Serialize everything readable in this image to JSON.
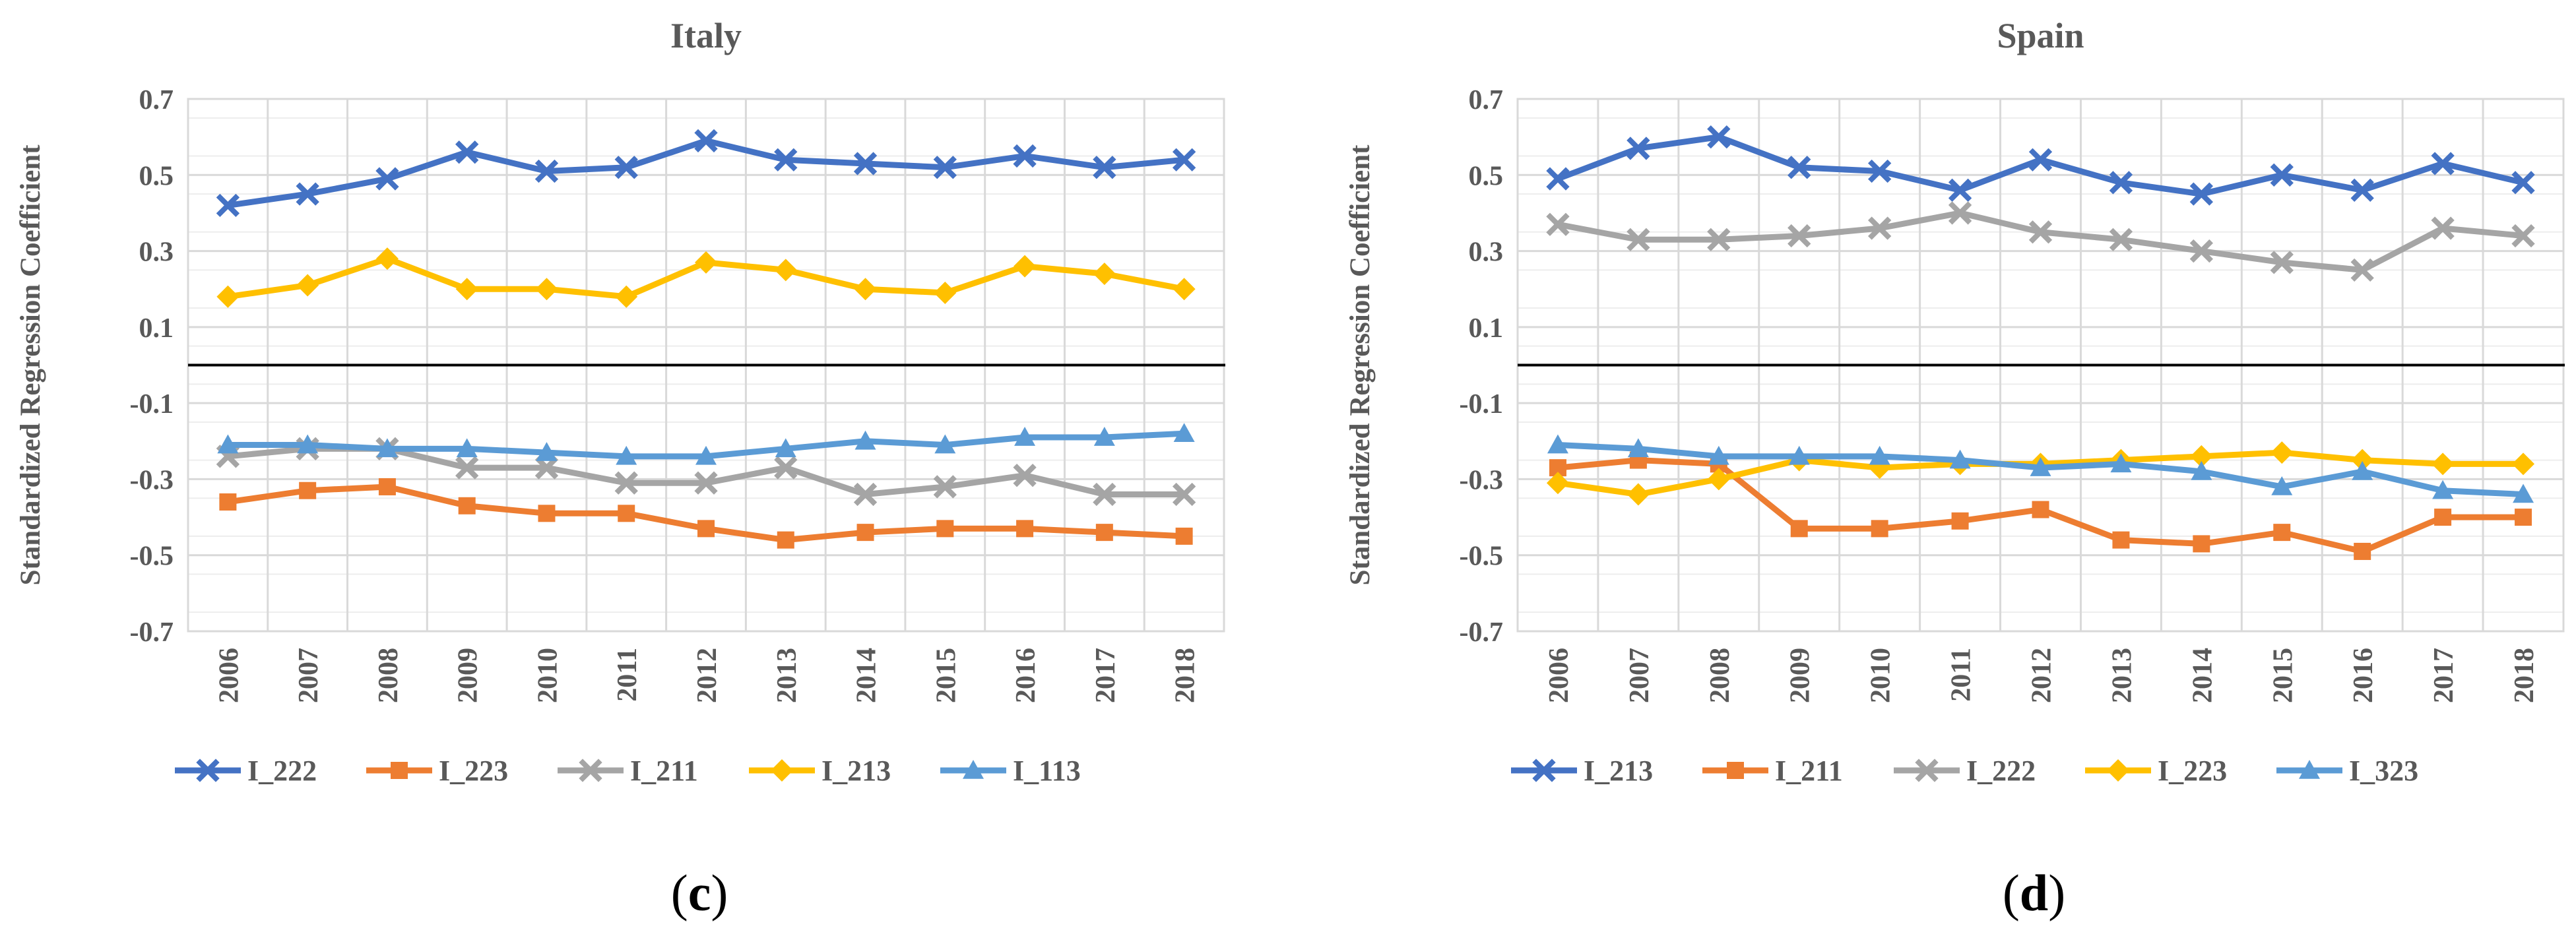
{
  "chart_data": [
    {
      "type": "line",
      "title": "Italy",
      "panel_label": "(c)",
      "ylabel": "Standardized Regression Coefficient",
      "xlabel": "",
      "ylim": [
        -0.7,
        0.7
      ],
      "yticks": [
        "0.7",
        "0.5",
        "0.3",
        "0.1",
        "-0.1",
        "-0.3",
        "-0.5",
        "-0.7"
      ],
      "reference_line": 0,
      "categories": [
        "2006",
        "2007",
        "2008",
        "2009",
        "2010",
        "2011",
        "2012",
        "2013",
        "2014",
        "2015",
        "2016",
        "2017",
        "2018"
      ],
      "legend_position": "bottom",
      "series": [
        {
          "name": "I_222",
          "color": "#4472C4",
          "marker": "x",
          "values": [
            0.42,
            0.45,
            0.49,
            0.56,
            0.51,
            0.52,
            0.59,
            0.54,
            0.53,
            0.52,
            0.55,
            0.52,
            0.54
          ]
        },
        {
          "name": "I_223",
          "color": "#ED7D31",
          "marker": "square",
          "values": [
            -0.36,
            -0.33,
            -0.32,
            -0.37,
            -0.39,
            -0.39,
            -0.43,
            -0.46,
            -0.44,
            -0.43,
            -0.43,
            -0.44,
            -0.45
          ]
        },
        {
          "name": "I_211",
          "color": "#A5A5A5",
          "marker": "x",
          "values": [
            -0.24,
            -0.22,
            -0.22,
            -0.27,
            -0.27,
            -0.31,
            -0.31,
            -0.27,
            -0.34,
            -0.32,
            -0.29,
            -0.34,
            -0.34
          ]
        },
        {
          "name": "I_213",
          "color": "#FFC000",
          "marker": "diamond",
          "values": [
            0.18,
            0.21,
            0.28,
            0.2,
            0.2,
            0.18,
            0.27,
            0.25,
            0.2,
            0.19,
            0.26,
            0.24,
            0.2
          ]
        },
        {
          "name": "I_113",
          "color": "#5B9BD5",
          "marker": "triangle",
          "values": [
            -0.21,
            -0.21,
            -0.22,
            -0.22,
            -0.23,
            -0.24,
            -0.24,
            -0.22,
            -0.2,
            -0.21,
            -0.19,
            -0.19,
            -0.18
          ]
        }
      ]
    },
    {
      "type": "line",
      "title": "Spain",
      "panel_label": "(d)",
      "ylabel": "Standardized Regression Coefficient",
      "xlabel": "",
      "ylim": [
        -0.7,
        0.7
      ],
      "yticks": [
        "0.7",
        "0.5",
        "0.3",
        "0.1",
        "-0.1",
        "-0.3",
        "-0.5",
        "-0.7"
      ],
      "reference_line": 0,
      "categories": [
        "2006",
        "2007",
        "2008",
        "2009",
        "2010",
        "2011",
        "2012",
        "2013",
        "2014",
        "2015",
        "2016",
        "2017",
        "2018"
      ],
      "legend_position": "bottom",
      "series": [
        {
          "name": "I_213",
          "color": "#4472C4",
          "marker": "x",
          "values": [
            0.49,
            0.57,
            0.6,
            0.52,
            0.51,
            0.46,
            0.54,
            0.48,
            0.45,
            0.5,
            0.46,
            0.53,
            0.48
          ]
        },
        {
          "name": "I_211",
          "color": "#ED7D31",
          "marker": "square",
          "values": [
            -0.27,
            -0.25,
            -0.26,
            -0.43,
            -0.43,
            -0.41,
            -0.38,
            -0.46,
            -0.47,
            -0.44,
            -0.49,
            -0.4,
            -0.4
          ]
        },
        {
          "name": "I_222",
          "color": "#A5A5A5",
          "marker": "x",
          "values": [
            0.37,
            0.33,
            0.33,
            0.34,
            0.36,
            0.4,
            0.35,
            0.33,
            0.3,
            0.27,
            0.25,
            0.36,
            0.34
          ]
        },
        {
          "name": "I_223",
          "color": "#FFC000",
          "marker": "diamond",
          "values": [
            -0.31,
            -0.34,
            -0.3,
            -0.25,
            -0.27,
            -0.26,
            -0.26,
            -0.25,
            -0.24,
            -0.23,
            -0.25,
            -0.26,
            -0.26
          ]
        },
        {
          "name": "I_323",
          "color": "#5B9BD5",
          "marker": "triangle",
          "values": [
            -0.21,
            -0.22,
            -0.24,
            -0.24,
            -0.24,
            -0.25,
            -0.27,
            -0.26,
            -0.28,
            -0.32,
            -0.28,
            -0.33,
            -0.34
          ]
        }
      ]
    }
  ]
}
